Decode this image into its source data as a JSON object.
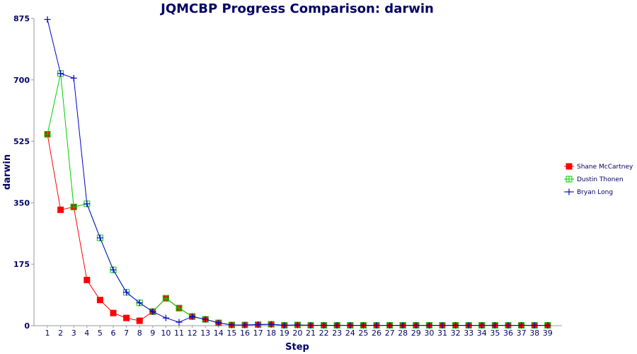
{
  "chart_data": {
    "type": "line",
    "title": "JQMCBP Progress Comparison: darwin",
    "xlabel": "Step",
    "ylabel": "darwin",
    "x": [
      1,
      2,
      3,
      4,
      5,
      6,
      7,
      8,
      9,
      10,
      11,
      12,
      13,
      14,
      15,
      16,
      17,
      18,
      19,
      20,
      21,
      22,
      23,
      24,
      25,
      26,
      27,
      28,
      29,
      30,
      31,
      32,
      33,
      34,
      35,
      36,
      37,
      38,
      39
    ],
    "yticks": [
      0,
      175,
      350,
      525,
      700,
      875
    ],
    "ylim": [
      0,
      875
    ],
    "grid": false,
    "legend_position": "right",
    "series": [
      {
        "name": "Shane McCartney",
        "color": "#ff0000",
        "marker": "filled-square",
        "values": [
          545,
          330,
          338,
          130,
          73,
          36,
          22,
          14,
          40,
          78,
          50,
          26,
          18,
          8,
          2,
          2,
          3,
          4,
          1,
          2,
          1,
          1,
          1,
          1,
          1,
          1,
          1,
          1,
          1,
          1,
          1,
          1,
          1,
          1,
          1,
          1,
          1,
          1,
          1
        ]
      },
      {
        "name": "Dustin Thonen",
        "color": "#00cc00",
        "marker": "open-square",
        "values": [
          545,
          718,
          338,
          347,
          250,
          159,
          95,
          65,
          40,
          78,
          50,
          26,
          18,
          8,
          2,
          2,
          3,
          4,
          1,
          2,
          1,
          1,
          1,
          1,
          1,
          1,
          1,
          1,
          1,
          1,
          1,
          1,
          1,
          1,
          1,
          1,
          1,
          1,
          1
        ]
      },
      {
        "name": "Bryan Long",
        "color": "#0000cc",
        "marker": "plus",
        "values": [
          872,
          718,
          705,
          347,
          250,
          159,
          95,
          65,
          40,
          22,
          10,
          26,
          18,
          8,
          2,
          2,
          3,
          4,
          1,
          2,
          1,
          1,
          1,
          1,
          1,
          1,
          1,
          1,
          1,
          1,
          1,
          1,
          1,
          1,
          1,
          1,
          1,
          1,
          1
        ]
      }
    ]
  }
}
